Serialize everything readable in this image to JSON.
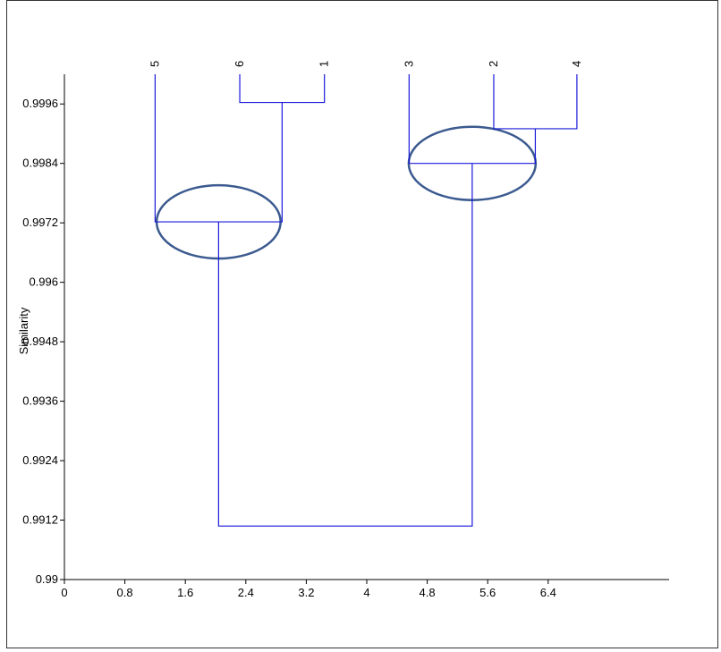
{
  "chart_data": {
    "type": "dendrogram",
    "title": "",
    "xlabel": "",
    "ylabel": "Similarity",
    "xlim": [
      0,
      8
    ],
    "ylim": [
      0.99,
      1.0002
    ],
    "x_ticks": [
      {
        "value": 0,
        "label": "0"
      },
      {
        "value": 0.8,
        "label": "0.8"
      },
      {
        "value": 1.6,
        "label": "1.6"
      },
      {
        "value": 2.4,
        "label": "2.4"
      },
      {
        "value": 3.2,
        "label": "3.2"
      },
      {
        "value": 4.0,
        "label": "4"
      },
      {
        "value": 4.8,
        "label": "4.8"
      },
      {
        "value": 5.6,
        "label": "5.6"
      },
      {
        "value": 6.4,
        "label": "6.4"
      }
    ],
    "y_ticks": [
      {
        "value": 0.99,
        "label": "0.99"
      },
      {
        "value": 0.9912,
        "label": "0.9912"
      },
      {
        "value": 0.9924,
        "label": "0.9924"
      },
      {
        "value": 0.9936,
        "label": "0.9936"
      },
      {
        "value": 0.9948,
        "label": "0.9948"
      },
      {
        "value": 0.996,
        "label": "0.996"
      },
      {
        "value": 0.9972,
        "label": "0.9972"
      },
      {
        "value": 0.9984,
        "label": "0.9984"
      },
      {
        "value": 0.9996,
        "label": "0.9996"
      }
    ],
    "leaves": [
      {
        "label": "5",
        "x": 1.2
      },
      {
        "label": "6",
        "x": 2.32
      },
      {
        "label": "1",
        "x": 3.44
      },
      {
        "label": "3",
        "x": 4.56
      },
      {
        "label": "2",
        "x": 5.68
      },
      {
        "label": "4",
        "x": 6.78
      }
    ],
    "merges": [
      {
        "left_x": 2.32,
        "right_x": 3.44,
        "left_top": 1.0002,
        "right_top": 1.0002,
        "similarity": 0.99963
      },
      {
        "left_x": 5.68,
        "right_x": 6.78,
        "left_top": 1.0002,
        "right_top": 1.0002,
        "similarity": 0.9991
      },
      {
        "left_x": 1.2,
        "right_x": 2.88,
        "left_top": 1.0002,
        "right_top": 0.99963,
        "similarity": 0.99722
      },
      {
        "left_x": 4.56,
        "right_x": 6.23,
        "left_top": 1.0002,
        "right_top": 0.9991,
        "similarity": 0.9984
      },
      {
        "left_x": 2.04,
        "right_x": 5.395,
        "left_top": 0.99722,
        "right_top": 0.9984,
        "similarity": 0.99108
      }
    ],
    "highlights": [
      {
        "cx": 2.04,
        "cy": 0.99722,
        "rx": 0.82,
        "ry": 0.00074
      },
      {
        "cx": 5.395,
        "cy": 0.9984,
        "rx": 0.84,
        "ry": 0.00074
      }
    ],
    "colors": {
      "line": "#1a1adb",
      "ellipse": "#3b5a8f",
      "axis": "#000000"
    },
    "grid": false,
    "legend": "none"
  }
}
